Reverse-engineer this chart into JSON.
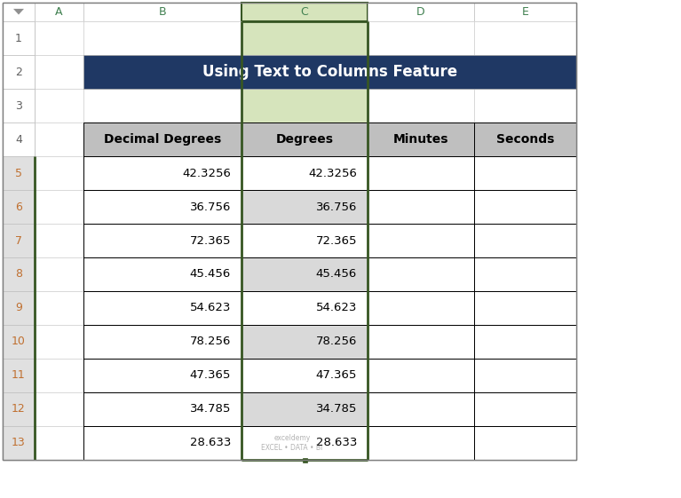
{
  "title": "Using Text to Columns Feature",
  "title_bg_color": "#1F3864",
  "title_text_color": "#FFFFFF",
  "title_fontsize": 12,
  "col_headers": [
    "Decimal Degrees",
    "Degrees",
    "Minutes",
    "Seconds"
  ],
  "col_header_bg": "#A6A6A6",
  "col_header_text_color": "#000000",
  "col_header_fontsize": 10,
  "data_values": [
    [
      "42.3256",
      "42.3256",
      "",
      ""
    ],
    [
      "36.756",
      "36.756",
      "",
      ""
    ],
    [
      "72.365",
      "72.365",
      "",
      ""
    ],
    [
      "45.456",
      "45.456",
      "",
      ""
    ],
    [
      "54.623",
      "54.623",
      "",
      ""
    ],
    [
      "78.256",
      "78.256",
      "",
      ""
    ],
    [
      "47.365",
      "47.365",
      "",
      ""
    ],
    [
      "34.785",
      "34.785",
      "",
      ""
    ],
    [
      "28.633",
      "28.633",
      "",
      ""
    ]
  ],
  "data_fontsize": 9.5,
  "col_letters": [
    "A",
    "B",
    "C",
    "D",
    "E"
  ],
  "selected_col": "C",
  "selected_col_header_bg": "#D6E4BC",
  "selected_col_data_bg_odd": "#FFFFFF",
  "selected_col_data_bg_even": "#C8C8C8",
  "normal_data_bg": "#FFFFFF",
  "header_row_bg": "#BFBFBF",
  "grid_line_color": "#000000",
  "thin_grid_color": "#D0D0D0",
  "border_selected_color": "#375623",
  "row_header_bg_normal": "#FFFFFF",
  "row_header_bg_selected": "#E0E0E0",
  "col_header_strip_bg": "#FFFFFF",
  "col_header_strip_selected_bg": "#D6E4BC",
  "row_num_text_color": "#C07030",
  "col_letter_text_color": "#408050",
  "outer_border_color": "#808080",
  "watermark_text": "exceldemy\nEXCEL • DATA • BI"
}
